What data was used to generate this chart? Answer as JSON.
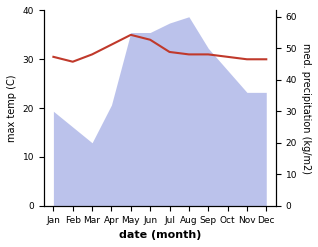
{
  "months": [
    "Jan",
    "Feb",
    "Mar",
    "Apr",
    "May",
    "Jun",
    "Jul",
    "Aug",
    "Sep",
    "Oct",
    "Nov",
    "Dec"
  ],
  "temperature": [
    30.5,
    29.5,
    31.0,
    33.0,
    35.0,
    34.0,
    31.5,
    31.0,
    31.0,
    30.5,
    30.0,
    30.0
  ],
  "precipitation": [
    30,
    25,
    20,
    32,
    55,
    55,
    58,
    60,
    50,
    43,
    36,
    36
  ],
  "temp_color": "#c0392b",
  "precip_color": "#b0b8e8",
  "xlabel": "date (month)",
  "ylabel_left": "max temp (C)",
  "ylabel_right": "med. precipitation (kg/m2)",
  "ylim_left": [
    0,
    40
  ],
  "ylim_right": [
    0,
    62
  ],
  "yticks_left": [
    0,
    10,
    20,
    30,
    40
  ],
  "yticks_right": [
    0,
    10,
    20,
    30,
    40,
    50,
    60
  ],
  "bg_color": "#ffffff"
}
